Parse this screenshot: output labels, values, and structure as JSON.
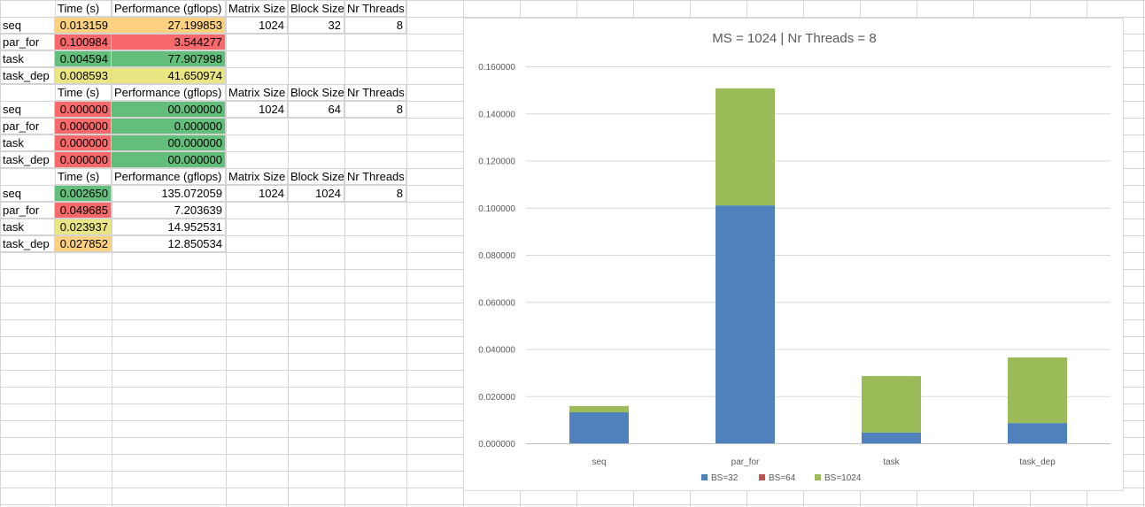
{
  "colors": {
    "green": "#63BE7B",
    "yellow": "#E9E582",
    "orange": "#FDD17F",
    "red": "#F8696B",
    "bs32": "#4F81BD",
    "bs64": "#C0504D",
    "bs1024": "#9BBB59"
  },
  "sheet": {
    "blocks": [
      {
        "headers": [
          "Time (s)",
          "Performance (gflops)",
          "Matrix Size",
          "Block Size",
          "Nr Threads"
        ],
        "rows": [
          {
            "label": "seq",
            "time": "0.013159",
            "perf": "27.199853",
            "matrix": "1024",
            "block": "32",
            "threads": "8",
            "time_color": "orange",
            "perf_color": "orange"
          },
          {
            "label": "par_for",
            "time": "0.100984",
            "perf": "3.544277",
            "matrix": "",
            "block": "",
            "threads": "",
            "time_color": "red",
            "perf_color": "red"
          },
          {
            "label": "task",
            "time": "0.004594",
            "perf": "77.907998",
            "matrix": "",
            "block": "",
            "threads": "",
            "time_color": "green",
            "perf_color": "green"
          },
          {
            "label": "task_dep",
            "time": "0.008593",
            "perf": "41.650974",
            "matrix": "",
            "block": "",
            "threads": "",
            "time_color": "yellow",
            "perf_color": "yellow"
          }
        ]
      },
      {
        "headers": [
          "Time (s)",
          "Performance (gflops)",
          "Matrix Size",
          "Block Size",
          "Nr Threads"
        ],
        "rows": [
          {
            "label": "seq",
            "time": "0.000000",
            "perf": "00.000000",
            "matrix": "1024",
            "block": "64",
            "threads": "8",
            "time_color": "red",
            "perf_color": "green"
          },
          {
            "label": "par_for",
            "time": "0.000000",
            "perf": "0.000000",
            "matrix": "",
            "block": "",
            "threads": "",
            "time_color": "red",
            "perf_color": "green"
          },
          {
            "label": "task",
            "time": "0.000000",
            "perf": "00.000000",
            "matrix": "",
            "block": "",
            "threads": "",
            "time_color": "red",
            "perf_color": "green"
          },
          {
            "label": "task_dep",
            "time": "0.000000",
            "perf": "00.000000",
            "matrix": "",
            "block": "",
            "threads": "",
            "time_color": "red",
            "perf_color": "green"
          }
        ]
      },
      {
        "headers": [
          "Time (s)",
          "Performance (gflops)",
          "Matrix Size",
          "Block Size",
          "Nr Threads"
        ],
        "rows": [
          {
            "label": "seq",
            "time": "0.002650",
            "perf": "135.072059",
            "matrix": "1024",
            "block": "1024",
            "threads": "8",
            "time_color": "green",
            "perf_color": ""
          },
          {
            "label": "par_for",
            "time": "0.049685",
            "perf": "7.203639",
            "matrix": "",
            "block": "",
            "threads": "",
            "time_color": "red",
            "perf_color": ""
          },
          {
            "label": "task",
            "time": "0.023937",
            "perf": "14.952531",
            "matrix": "",
            "block": "",
            "threads": "",
            "time_color": "yellow",
            "perf_color": ""
          },
          {
            "label": "task_dep",
            "time": "0.027852",
            "perf": "12.850534",
            "matrix": "",
            "block": "",
            "threads": "",
            "time_color": "orange",
            "perf_color": ""
          }
        ]
      }
    ]
  },
  "chart_data": {
    "type": "bar",
    "stacked": true,
    "title": "MS = 1024 | Nr Threads = 8",
    "categories": [
      "seq",
      "par_for",
      "task",
      "task_dep"
    ],
    "series": [
      {
        "name": "BS=32",
        "color": "#4F81BD",
        "values": [
          0.013159,
          0.100984,
          0.004594,
          0.008593
        ]
      },
      {
        "name": "BS=64",
        "color": "#C0504D",
        "values": [
          0,
          0,
          0,
          0
        ]
      },
      {
        "name": "BS=1024",
        "color": "#9BBB59",
        "values": [
          0.00265,
          0.049685,
          0.023937,
          0.027852
        ]
      }
    ],
    "ylim": [
      0,
      0.16
    ],
    "yticks": [
      "0.000000",
      "0.020000",
      "0.040000",
      "0.060000",
      "0.080000",
      "0.100000",
      "0.120000",
      "0.140000",
      "0.160000"
    ],
    "grid": true,
    "legend": "bottom"
  }
}
